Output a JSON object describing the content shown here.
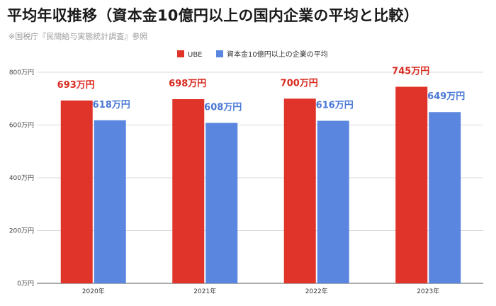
{
  "title": "平均年収推移（資本金10億円以上の国内企業の平均と比較）",
  "source_note": "※国税庁『民間給与実態統計調査』参照",
  "chart_data": {
    "type": "bar",
    "categories": [
      "2020年",
      "2021年",
      "2022年",
      "2023年"
    ],
    "series": [
      {
        "name": "UBE",
        "values": [
          693,
          698,
          700,
          745
        ],
        "color": "#e0332a",
        "labels": [
          "693万円",
          "698万円",
          "700万円",
          "745万円"
        ]
      },
      {
        "name": "資本金10億円以上の企業の平均",
        "values": [
          618,
          608,
          616,
          649
        ],
        "color": "#5b86e0",
        "labels": [
          "618万円",
          "608万円",
          "616万円",
          "649万円"
        ]
      }
    ],
    "label_colors": [
      "#d92a20",
      "#4a78d6"
    ],
    "ylim": [
      0,
      800
    ],
    "yticks": [
      0,
      200,
      400,
      600,
      800
    ],
    "ytick_labels": [
      "0万円",
      "200万円",
      "400万円",
      "600万円",
      "800万円"
    ],
    "grid": true,
    "legend": "top-center"
  }
}
